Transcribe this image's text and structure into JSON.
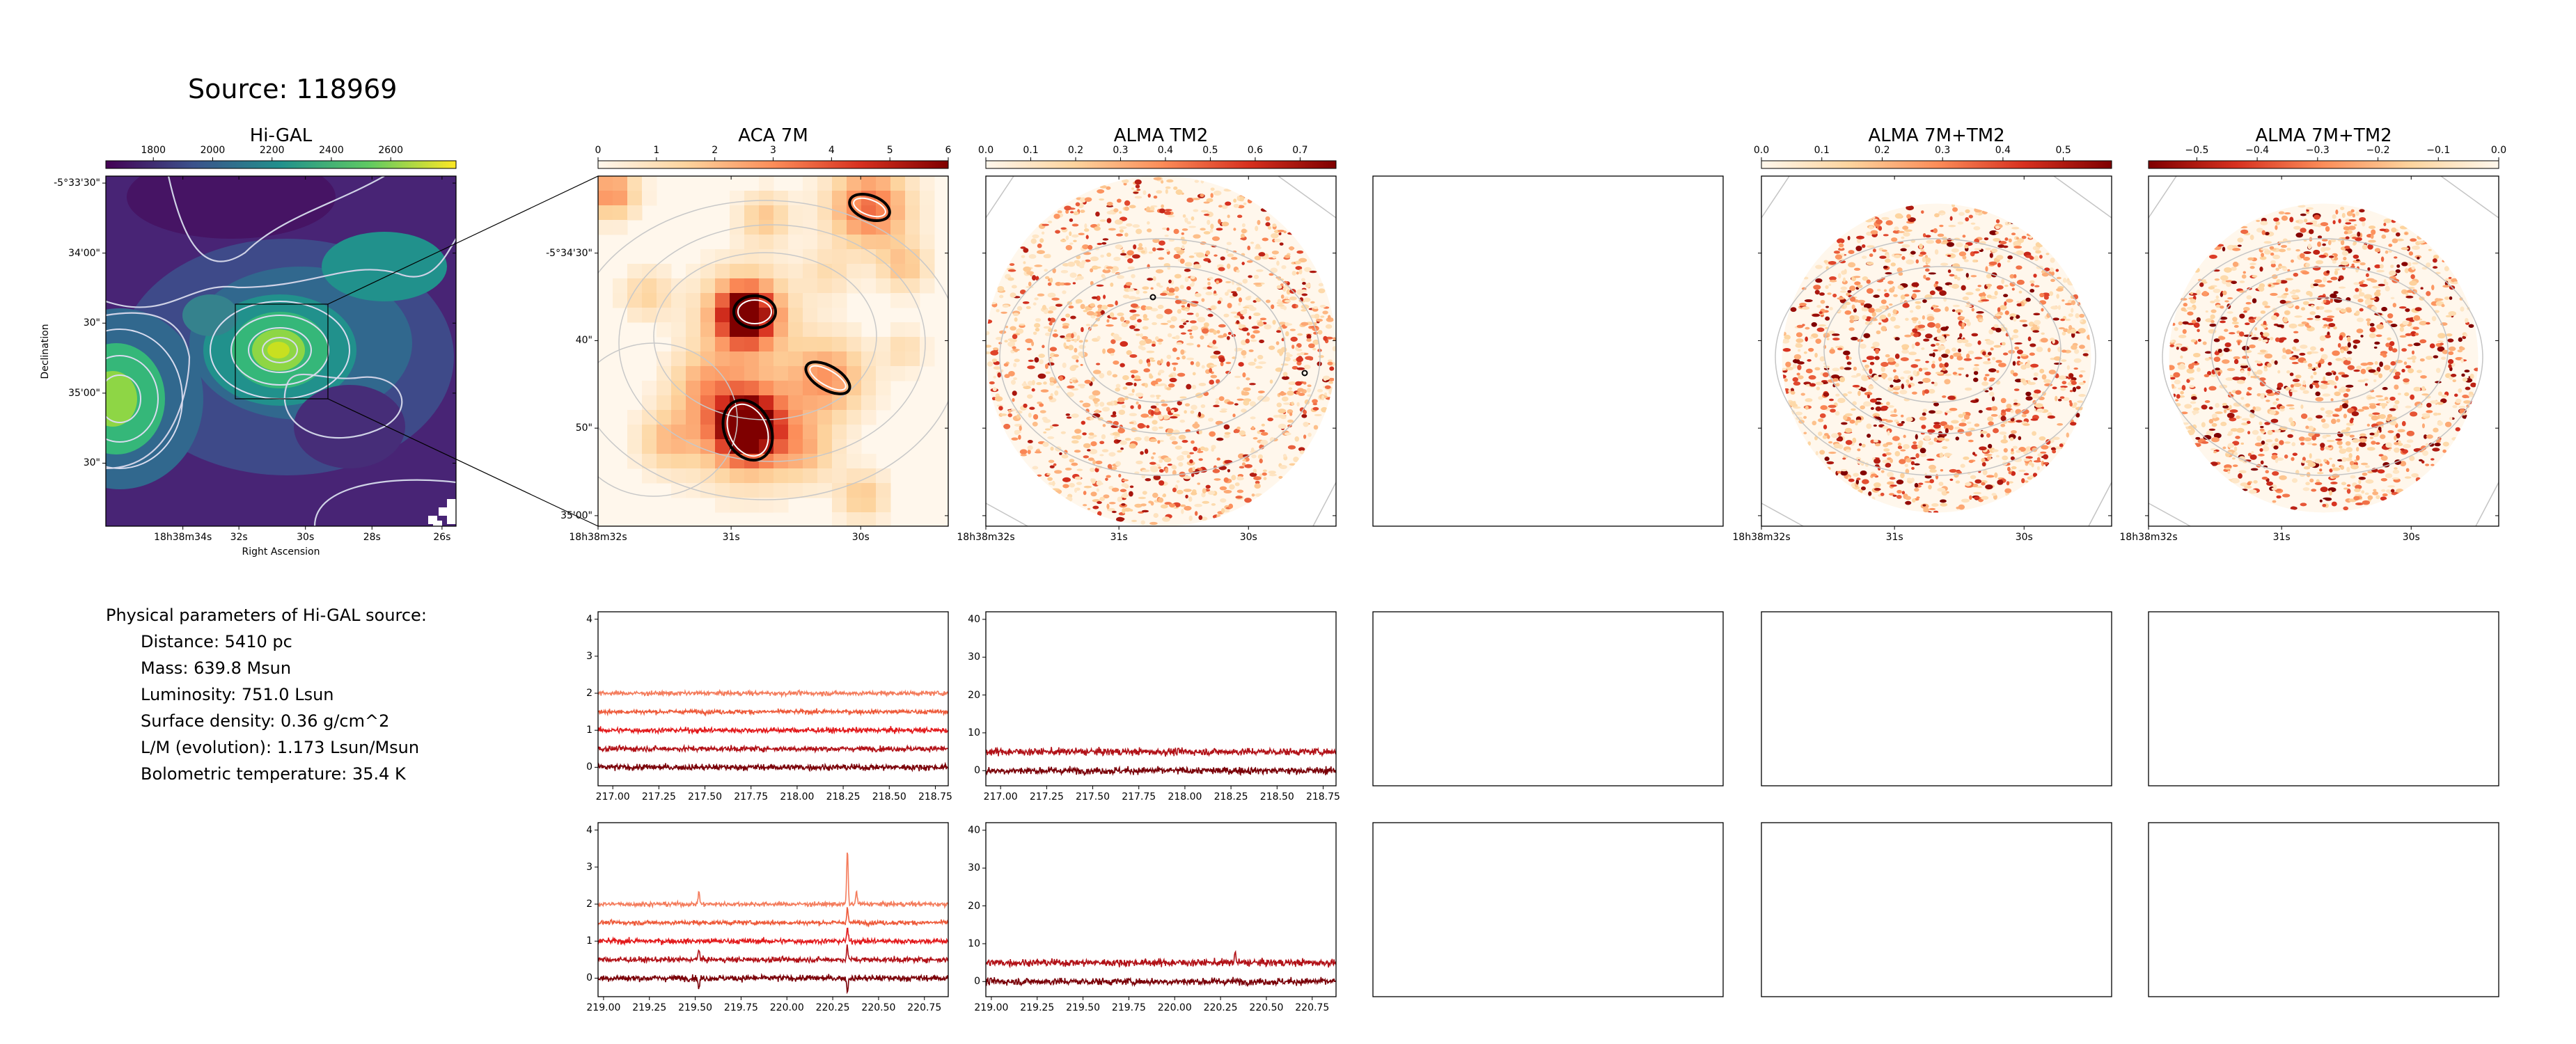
{
  "figure": {
    "title": "Source: 118969",
    "params_header": "Physical parameters of Hi-GAL source:",
    "params": [
      "Distance: 5410 pc",
      "Mass: 639.8 Msun",
      "Luminosity: 751.0 Lsun",
      "Surface density: 0.36 g/cm^2",
      "L/M (evolution): 1.173 Lsun/Msun",
      "Bolometric temperature: 35.4 K"
    ]
  },
  "colors": {
    "spectrum_series": [
      "#f47c5c",
      "#ee5a3a",
      "#e31a1c",
      "#b21218",
      "#7a0008"
    ],
    "frame": "#000000",
    "contour": "#dddddd"
  },
  "chart_data": [
    {
      "id": "higal",
      "type": "heatmap",
      "title": "Hi-GAL",
      "colormap": "viridis",
      "colorbar_ticks": [
        "1800",
        "2000",
        "2200",
        "2400",
        "2600"
      ],
      "colorbar_range": [
        1640,
        2820
      ],
      "xlabel": "Right Ascension",
      "ylabel": "Declination",
      "x_ticks": [
        "18h38m34s",
        "32s",
        "30s",
        "28s",
        "26s"
      ],
      "y_ticks": [
        "-5°33'30\"",
        "34'00\"",
        "30\"",
        "35'00\"",
        "30\""
      ]
    },
    {
      "id": "aca7m",
      "type": "heatmap",
      "title": "ACA 7M",
      "colormap": "OrRd",
      "colorbar_ticks": [
        "0",
        "1",
        "2",
        "3",
        "4",
        "5",
        "6"
      ],
      "colorbar_range": [
        0,
        6
      ],
      "x_ticks": [
        "18h38m32s",
        "31s",
        "30s"
      ],
      "y_ticks": [
        "-5°34'30\"",
        "40\"",
        "50\"",
        "35'00\""
      ]
    },
    {
      "id": "tm2",
      "type": "heatmap",
      "title": "ALMA TM2",
      "colormap": "OrRd",
      "colorbar_ticks": [
        "0.0",
        "0.1",
        "0.2",
        "0.3",
        "0.4",
        "0.5",
        "0.6",
        "0.7"
      ],
      "colorbar_range": [
        0,
        0.78
      ],
      "x_ticks": [
        "18h38m32s",
        "31s",
        "30s"
      ]
    },
    {
      "id": "combo",
      "type": "heatmap",
      "title": "ALMA 7M+TM2",
      "colormap": "OrRd",
      "colorbar_ticks": [
        "0.0",
        "0.1",
        "0.2",
        "0.3",
        "0.4",
        "0.5"
      ],
      "colorbar_range": [
        0,
        0.58
      ],
      "x_ticks": [
        "18h38m32s",
        "31s",
        "30s"
      ]
    },
    {
      "id": "combo_neg",
      "type": "heatmap",
      "title": "ALMA 7M+TM2",
      "colormap": "OrRd_r",
      "colorbar_ticks": [
        "−0.5",
        "−0.4",
        "−0.3",
        "−0.2",
        "−0.1",
        "0.0"
      ],
      "colorbar_range": [
        -0.58,
        0
      ],
      "x_ticks": [
        "18h38m32s",
        "31s",
        "30s"
      ]
    },
    {
      "id": "spec_aca_low",
      "type": "line",
      "x_range": [
        216.92,
        218.82
      ],
      "x_ticks": [
        "217.00",
        "217.25",
        "217.50",
        "217.75",
        "218.00",
        "218.25",
        "218.50",
        "218.75"
      ],
      "x_tick_values": [
        217.0,
        217.25,
        217.5,
        217.75,
        218.0,
        218.25,
        218.5,
        218.75
      ],
      "ylim": [
        -0.5,
        4.2
      ],
      "y_ticks": [
        0,
        1,
        2,
        3,
        4
      ],
      "series": [
        {
          "offset": 2.0,
          "noise": 0.05
        },
        {
          "offset": 1.5,
          "noise": 0.05
        },
        {
          "offset": 1.0,
          "noise": 0.06
        },
        {
          "offset": 0.5,
          "noise": 0.06
        },
        {
          "offset": 0.0,
          "noise": 0.07
        }
      ]
    },
    {
      "id": "spec_tm2_low",
      "type": "line",
      "x_range": [
        216.92,
        218.82
      ],
      "x_ticks": [
        "217.00",
        "217.25",
        "217.50",
        "217.75",
        "218.00",
        "218.25",
        "218.50",
        "218.75"
      ],
      "x_tick_values": [
        217.0,
        217.25,
        217.5,
        217.75,
        218.0,
        218.25,
        218.5,
        218.75
      ],
      "ylim": [
        -4,
        42
      ],
      "y_ticks": [
        0,
        10,
        20,
        30,
        40
      ],
      "series": [
        {
          "offset": 5.0,
          "noise": 0.8
        },
        {
          "offset": 0.0,
          "noise": 0.8
        }
      ]
    },
    {
      "id": "spec_aca_high",
      "type": "line",
      "x_range": [
        218.97,
        220.88
      ],
      "x_ticks": [
        "219.00",
        "219.25",
        "219.50",
        "219.75",
        "220.00",
        "220.25",
        "220.50",
        "220.75"
      ],
      "x_tick_values": [
        219.0,
        219.25,
        219.5,
        219.75,
        220.0,
        220.25,
        220.5,
        220.75
      ],
      "ylim": [
        -0.5,
        4.2
      ],
      "y_ticks": [
        0,
        1,
        2,
        3,
        4
      ],
      "series": [
        {
          "offset": 2.0,
          "noise": 0.05,
          "lines": [
            [
              219.52,
              0.35
            ],
            [
              220.33,
              1.45
            ],
            [
              220.38,
              0.35
            ]
          ]
        },
        {
          "offset": 1.5,
          "noise": 0.05,
          "lines": [
            [
              220.33,
              0.4
            ]
          ]
        },
        {
          "offset": 1.0,
          "noise": 0.06,
          "lines": [
            [
              220.33,
              0.35
            ]
          ]
        },
        {
          "offset": 0.5,
          "noise": 0.06,
          "lines": [
            [
              219.52,
              0.3
            ],
            [
              220.33,
              0.35
            ]
          ]
        },
        {
          "offset": 0.0,
          "noise": 0.07,
          "lines": [
            [
              219.52,
              -0.3
            ],
            [
              220.33,
              -0.35
            ]
          ]
        }
      ]
    },
    {
      "id": "spec_tm2_high",
      "type": "line",
      "x_range": [
        218.97,
        220.88
      ],
      "x_ticks": [
        "219.00",
        "219.25",
        "219.50",
        "219.75",
        "220.00",
        "220.25",
        "220.50",
        "220.75"
      ],
      "x_tick_values": [
        219.0,
        219.25,
        219.5,
        219.75,
        220.0,
        220.25,
        220.5,
        220.75
      ],
      "ylim": [
        -4,
        42
      ],
      "y_ticks": [
        0,
        10,
        20,
        30,
        40
      ],
      "series": [
        {
          "offset": 5.0,
          "noise": 0.8,
          "lines": [
            [
              220.33,
              2.5
            ]
          ]
        },
        {
          "offset": 0.0,
          "noise": 0.8
        }
      ]
    }
  ]
}
